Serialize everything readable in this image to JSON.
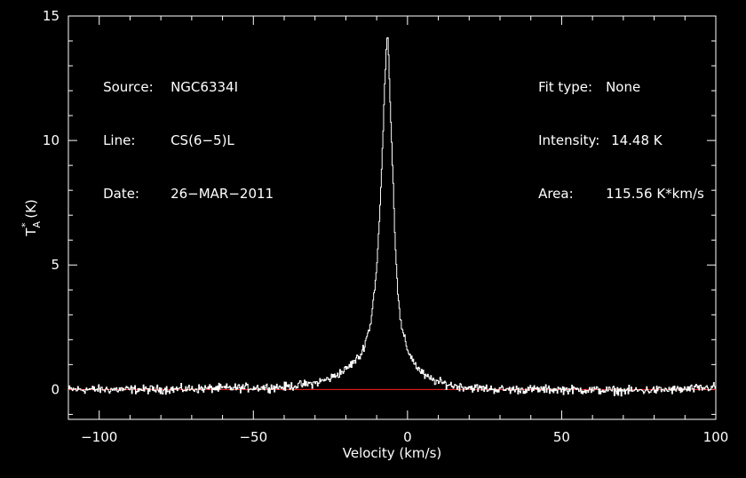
{
  "info_left": [
    {
      "key": "Source:",
      "value": "NGC6334I"
    },
    {
      "key": "Line:",
      "value": "CS(6−5)L"
    },
    {
      "key": "Date:",
      "value": "26−MAR−2011"
    }
  ],
  "info_right": [
    {
      "key": "Fit type:",
      "value": "None"
    },
    {
      "key": "Intensity:",
      "value": "14.48 K"
    },
    {
      "key": "Area:",
      "value": "115.56 K*km/s"
    }
  ],
  "chart_data": {
    "type": "line",
    "xlabel": "Velocity (km/s)",
    "ylabel_main": "T",
    "ylabel_sub": "A",
    "ylabel_sup": "*",
    "ylabel_unit": " (K)",
    "xlim": [
      -110,
      100
    ],
    "ylim": [
      -1.2,
      15
    ],
    "x_ticks": [
      -100,
      -50,
      0,
      50,
      100
    ],
    "x_tick_labels": [
      "−100",
      "−50",
      "0",
      "50",
      "100"
    ],
    "y_ticks": [
      0,
      5,
      10,
      15
    ],
    "y_tick_labels": [
      "0",
      "5",
      "10",
      "15"
    ],
    "grid": false,
    "series": [
      {
        "style": "step",
        "color": "#ffffff",
        "description": "spectrum with narrow peak",
        "peak_x": -6.5,
        "peak_y": 14.48,
        "x": [
          -110,
          -100,
          -80,
          -60,
          -40,
          -30,
          -25,
          -20,
          -15,
          -12,
          -10,
          -9,
          -8,
          -7,
          -6.5,
          -6,
          -5,
          -4,
          -3,
          -2,
          0,
          3,
          6,
          10,
          15,
          20,
          30,
          50,
          70,
          90,
          100
        ],
        "y": [
          0.0,
          0.0,
          0.0,
          0.05,
          0.1,
          0.25,
          0.45,
          0.8,
          1.4,
          2.6,
          4.8,
          7.0,
          10.0,
          13.5,
          14.48,
          13.0,
          9.5,
          6.0,
          3.6,
          2.5,
          1.6,
          0.9,
          0.5,
          0.3,
          0.15,
          0.08,
          0.0,
          0.0,
          -0.05,
          0.0,
          0.1
        ]
      },
      {
        "style": "line",
        "color": "#ff2020",
        "description": "baseline",
        "x": [
          -110,
          100
        ],
        "y": [
          0,
          0
        ]
      }
    ]
  }
}
